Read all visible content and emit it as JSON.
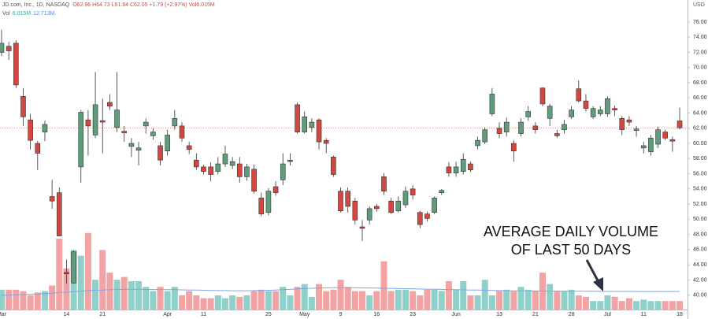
{
  "chart_data": {
    "type": "candlestick",
    "title": "JD.com, Inc., 1D, NASDAQ",
    "ohlc_legend": "O62.96 H64.73 L61.84 C62.05 +1.79 (+2.97%) Vol6.015M",
    "volume_legend": {
      "name": "Vol",
      "value": "6.015M",
      "average": "12.713M"
    },
    "currency": "USD",
    "annotation": [
      "AVERAGE DAILY VOLUME",
      "OF LAST 50 DAYS"
    ],
    "categories": [
      "Mar",
      null,
      null,
      null,
      null,
      null,
      null,
      null,
      null,
      "14",
      null,
      null,
      null,
      null,
      "21",
      null,
      null,
      null,
      null,
      null,
      null,
      null,
      null,
      "Apr",
      null,
      null,
      null,
      null,
      "11",
      null,
      null,
      null,
      null,
      null,
      null,
      null,
      null,
      "25",
      null,
      null,
      null,
      null,
      "May",
      null,
      null,
      null,
      null,
      "9",
      null,
      null,
      null,
      null,
      "16",
      null,
      null,
      null,
      null,
      "23",
      null,
      null,
      null,
      null,
      null,
      "Jun",
      null,
      null,
      null,
      null,
      null,
      "13",
      null,
      null,
      null,
      null,
      "21",
      null,
      null,
      null,
      null,
      "28",
      null,
      null,
      null,
      null,
      "Jul",
      null,
      null,
      null,
      null,
      "11",
      null,
      null,
      null,
      null,
      "18"
    ],
    "open": [
      72.0,
      72.8,
      73.2,
      66.2,
      63.1,
      60.0,
      61.5,
      53.0,
      53.5,
      43.0,
      41.6,
      56.9,
      63.1,
      61.1,
      63.0,
      65.4,
      62.1,
      61.6,
      59.6,
      59.1,
      62.3,
      61.0,
      59.7,
      59.0,
      62.3,
      62.3,
      59.7,
      57.8,
      56.9,
      56.9,
      56.3,
      57.3,
      57.1,
      57.3,
      55.6,
      56.6,
      52.8,
      50.9,
      54.3,
      55.2,
      57.6,
      65.1,
      61.5,
      62.1,
      63.1,
      60.4,
      58.2,
      53.7,
      53.7,
      52.4,
      49.0,
      49.9,
      51.7,
      55.6,
      52.4,
      51.1,
      51.9,
      54.0,
      50.9,
      50.7,
      50.9,
      53.5,
      56.9,
      56.1,
      56.3,
      57.3,
      59.7,
      60.2,
      63.9,
      62.0,
      61.5,
      60.0,
      61.3,
      63.5,
      62.3,
      67.3,
      63.3,
      61.3,
      61.8,
      63.5,
      67.2,
      65.6,
      63.5,
      63.9,
      63.9,
      64.6,
      63.3,
      63.1,
      61.7,
      59.4,
      58.9,
      59.9,
      61.5,
      60.5,
      62.96
    ],
    "high": [
      75.0,
      73.4,
      73.6,
      67.3,
      63.9,
      60.3,
      63.0,
      55.2,
      54.2,
      44.7,
      45.9,
      64.4,
      64.4,
      69.4,
      65.9,
      66.5,
      69.4,
      62.3,
      60.7,
      60.2,
      63.3,
      62.0,
      60.2,
      61.8,
      64.4,
      62.8,
      60.2,
      58.7,
      57.2,
      57.5,
      58.2,
      59.7,
      58.2,
      58.2,
      57.3,
      57.2,
      53.5,
      54.1,
      55.0,
      58.7,
      58.7,
      65.4,
      64.2,
      63.3,
      63.3,
      60.7,
      58.4,
      54.2,
      54.2,
      52.8,
      49.9,
      51.7,
      52.0,
      56.1,
      52.8,
      53.0,
      54.3,
      54.5,
      51.1,
      51.0,
      53.0,
      54.0,
      57.5,
      57.6,
      58.7,
      57.6,
      60.9,
      62.1,
      67.3,
      62.8,
      63.4,
      60.4,
      63.3,
      64.9,
      62.8,
      67.4,
      65.2,
      61.8,
      63.1,
      64.9,
      68.3,
      66.5,
      64.9,
      64.9,
      66.2,
      65.0,
      63.6,
      63.6,
      62.3,
      60.2,
      61.1,
      62.2,
      61.8,
      60.9,
      64.73
    ],
    "low": [
      71.5,
      71.0,
      67.3,
      62.3,
      59.2,
      56.5,
      60.3,
      51.4,
      47.8,
      41.5,
      41.5,
      54.8,
      58.4,
      60.7,
      58.7,
      64.4,
      61.5,
      60.2,
      58.2,
      57.1,
      61.3,
      60.5,
      57.1,
      58.4,
      61.8,
      60.2,
      58.6,
      56.5,
      55.9,
      55.0,
      55.9,
      56.9,
      56.6,
      54.8,
      55.1,
      53.4,
      50.4,
      50.5,
      53.1,
      54.5,
      57.1,
      61.3,
      61.3,
      61.5,
      59.2,
      58.7,
      55.6,
      50.9,
      50.9,
      49.3,
      47.1,
      49.3,
      51.0,
      53.2,
      50.7,
      50.9,
      51.5,
      52.6,
      48.8,
      49.7,
      50.7,
      53.2,
      55.6,
      55.6,
      55.9,
      56.2,
      59.2,
      59.9,
      63.6,
      60.7,
      60.9,
      57.6,
      60.9,
      63.0,
      61.3,
      64.9,
      62.3,
      60.7,
      61.3,
      63.2,
      65.4,
      64.2,
      63.2,
      63.6,
      63.5,
      63.6,
      61.1,
      62.3,
      60.9,
      58.7,
      58.4,
      59.4,
      60.4,
      58.9,
      61.84
    ],
    "close": [
      73.2,
      72.2,
      67.7,
      63.5,
      60.4,
      58.7,
      62.5,
      52.4,
      47.8,
      42.8,
      45.7,
      64.1,
      62.3,
      65.1,
      62.8,
      64.9,
      64.4,
      61.4,
      60.0,
      59.4,
      62.8,
      61.5,
      57.8,
      61.1,
      63.3,
      60.7,
      59.2,
      56.9,
      56.3,
      55.9,
      57.3,
      58.6,
      57.6,
      55.6,
      56.9,
      53.7,
      50.7,
      53.7,
      53.5,
      57.3,
      57.8,
      61.5,
      63.5,
      62.8,
      60.2,
      60.0,
      55.9,
      51.1,
      51.7,
      49.9,
      48.8,
      51.4,
      51.4,
      53.7,
      50.9,
      52.4,
      53.7,
      53.2,
      49.3,
      50.1,
      52.8,
      53.8,
      56.1,
      56.9,
      57.9,
      56.5,
      60.4,
      61.8,
      66.5,
      61.3,
      62.8,
      59.0,
      62.8,
      64.2,
      61.8,
      65.2,
      64.9,
      61.0,
      62.5,
      64.4,
      65.6,
      64.6,
      64.6,
      64.4,
      65.9,
      64.4,
      61.8,
      62.8,
      61.9,
      59.7,
      60.7,
      61.8,
      60.7,
      60.3,
      62.05
    ],
    "volume": [
      14,
      14,
      14,
      13,
      10,
      12,
      13,
      17,
      50,
      29,
      42,
      38,
      54,
      21,
      42,
      26,
      21,
      23,
      20,
      20,
      16,
      13,
      16,
      13,
      16,
      10,
      13,
      10,
      8,
      8,
      10,
      8,
      10,
      9,
      10,
      13,
      14,
      13,
      13,
      16,
      10,
      16,
      18,
      9,
      18,
      13,
      14,
      21,
      16,
      13,
      13,
      10,
      13,
      34,
      13,
      14,
      14,
      13,
      10,
      14,
      14,
      13,
      20,
      14,
      20,
      10,
      10,
      21,
      10,
      13,
      14,
      13,
      16,
      14,
      13,
      26,
      18,
      13,
      13,
      14,
      10,
      9,
      6,
      6,
      10,
      9,
      6,
      8,
      6,
      7,
      6,
      6,
      6,
      6,
      6.015
    ],
    "volume_ma": [
      10.0,
      10.2,
      10.4,
      10.6,
      10.8,
      11.0,
      11.2,
      11.5,
      12.0,
      12.3,
      12.6,
      13.0,
      13.4,
      13.6,
      13.8,
      14.0,
      14.1,
      14.2,
      14.2,
      14.2,
      14.2,
      14.1,
      14.1,
      14.0,
      14.0,
      13.9,
      13.8,
      13.7,
      13.6,
      13.5,
      13.4,
      13.4,
      13.3,
      13.3,
      13.3,
      13.4,
      13.5,
      13.6,
      13.8,
      14.0,
      14.2,
      14.5,
      14.8,
      15.0,
      15.2,
      15.3,
      15.4,
      15.4,
      15.4,
      15.4,
      15.3,
      15.2,
      15.1,
      15.0,
      14.9,
      14.8,
      14.7,
      14.6,
      14.5,
      14.4,
      14.3,
      14.2,
      14.1,
      14.0,
      13.9,
      13.8,
      13.7,
      13.6,
      13.5,
      13.4,
      13.3,
      13.2,
      13.2,
      13.1,
      13.1,
      13.0,
      13.0,
      13.0,
      13.0,
      12.9,
      12.9,
      12.9,
      12.9,
      12.8,
      12.8,
      12.8,
      12.8,
      12.8,
      12.7,
      12.7,
      12.7,
      12.7,
      12.7,
      12.7,
      12.713
    ],
    "last_price": 62.05,
    "ylim": [
      38.1,
      78.9
    ],
    "yticks": [
      {
        "value": 40,
        "label": "40.00"
      },
      {
        "value": 42,
        "label": "42.00"
      },
      {
        "value": 44,
        "label": "44.00"
      },
      {
        "value": 46,
        "label": "46.00"
      },
      {
        "value": 48,
        "label": "48.00"
      },
      {
        "value": 50,
        "label": "50.00"
      },
      {
        "value": 52,
        "label": "52.00"
      },
      {
        "value": 54,
        "label": "54.00"
      },
      {
        "value": 56,
        "label": "56.00"
      },
      {
        "value": 58,
        "label": "58.00"
      },
      {
        "value": 60,
        "label": "60.00"
      },
      {
        "value": 62,
        "label": "62.00"
      },
      {
        "value": 64,
        "label": "64.00"
      },
      {
        "value": 66,
        "label": "66.00"
      },
      {
        "value": 68,
        "label": "68.00"
      },
      {
        "value": 70,
        "label": "70.00"
      },
      {
        "value": 72,
        "label": "72.00"
      },
      {
        "value": 74,
        "label": "74.00"
      },
      {
        "value": 76,
        "label": "76.00"
      }
    ],
    "colors": {
      "up": "#5f9c7b",
      "down": "#d2473f",
      "volume_up": "#8fd1ca",
      "volume_down": "#f3a3a3",
      "volume_ma": "#7fa6e6"
    }
  }
}
